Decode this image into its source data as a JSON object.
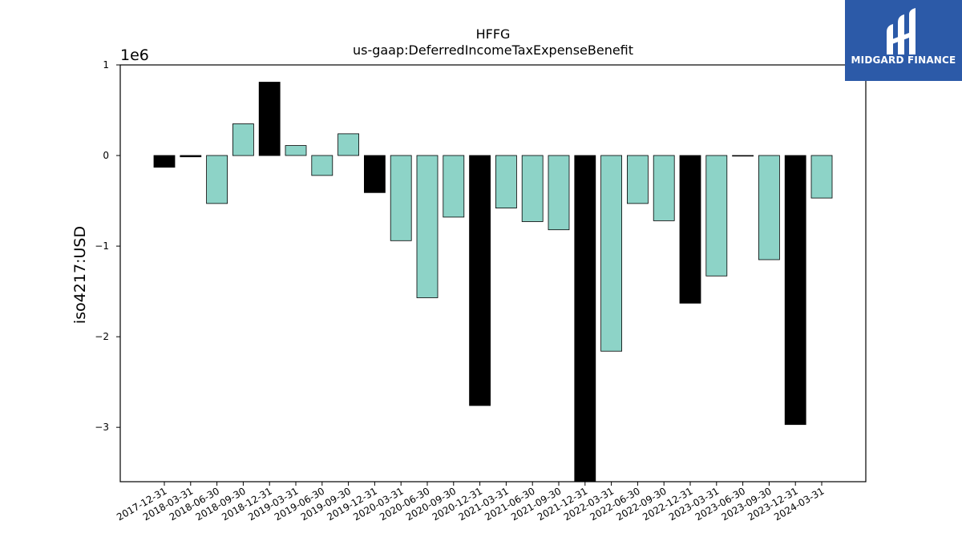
{
  "chart_data": {
    "type": "bar",
    "title": "HFFG",
    "subtitle": "us-gaap:DeferredIncomeTaxExpenseBenefit",
    "xlabel": "",
    "ylabel": "iso4217:USD",
    "y_multiplier_label": "1e6",
    "ylim": [
      -3600000,
      1000000
    ],
    "yticks": [
      1,
      0,
      -1,
      -2,
      -3
    ],
    "ytick_labels": [
      "1",
      "0",
      "−1",
      "−2",
      "−3"
    ],
    "grid": false,
    "colors": {
      "annual": "#000000",
      "quarterly": "#8dd3c7"
    },
    "categories": [
      "2017-12-31",
      "2018-03-31",
      "2018-06-30",
      "2018-09-30",
      "2018-12-31",
      "2019-03-31",
      "2019-06-30",
      "2019-09-30",
      "2019-12-31",
      "2020-03-31",
      "2020-06-30",
      "2020-09-30",
      "2020-12-31",
      "2021-03-31",
      "2021-06-30",
      "2021-09-30",
      "2021-12-31",
      "2022-03-31",
      "2022-06-30",
      "2022-09-30",
      "2022-12-31",
      "2023-03-31",
      "2023-06-30",
      "2023-09-30",
      "2023-12-31",
      "2024-03-31"
    ],
    "values": [
      -130000,
      -15000,
      -530000,
      350000,
      810000,
      110000,
      -220000,
      240000,
      -410000,
      -940000,
      -1570000,
      -680000,
      -2760000,
      -580000,
      -730000,
      -820000,
      -3600000,
      -2160000,
      -530000,
      -720000,
      -1630000,
      -1330000,
      -5000,
      -1150000,
      -2970000,
      -470000
    ],
    "series_kind": [
      "annual",
      "annual",
      "quarterly",
      "quarterly",
      "annual",
      "quarterly",
      "quarterly",
      "quarterly",
      "annual",
      "quarterly",
      "quarterly",
      "quarterly",
      "annual",
      "quarterly",
      "quarterly",
      "quarterly",
      "annual",
      "quarterly",
      "quarterly",
      "quarterly",
      "annual",
      "quarterly",
      "annual",
      "quarterly",
      "annual",
      "quarterly"
    ]
  },
  "logo": {
    "text": "MIDGARD FINANCE",
    "icon": "midgard-logo-icon"
  }
}
